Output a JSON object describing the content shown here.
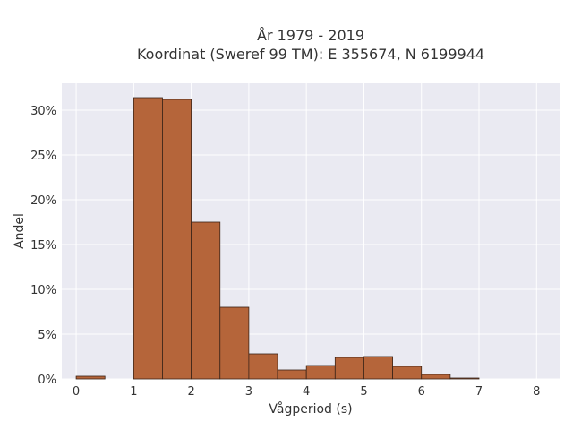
{
  "chart_data": {
    "type": "bar",
    "title_line1": "År 1979 - 2019",
    "title_line2": "Koordinat (Sweref 99 TM): E 355674, N 6199944",
    "xlabel": "Vågperiod (s)",
    "ylabel": "Andel",
    "xlim": [
      -0.25,
      8.4
    ],
    "ylim": [
      0,
      0.33
    ],
    "bin_width": 0.5,
    "bins": [
      {
        "x0": 0.0,
        "x1": 0.5,
        "value": 0.003
      },
      {
        "x0": 0.5,
        "x1": 1.0,
        "value": 0.0
      },
      {
        "x0": 1.0,
        "x1": 1.5,
        "value": 0.314
      },
      {
        "x0": 1.5,
        "x1": 2.0,
        "value": 0.312
      },
      {
        "x0": 2.0,
        "x1": 2.5,
        "value": 0.175
      },
      {
        "x0": 2.5,
        "x1": 3.0,
        "value": 0.08
      },
      {
        "x0": 3.0,
        "x1": 3.5,
        "value": 0.028
      },
      {
        "x0": 3.5,
        "x1": 4.0,
        "value": 0.01
      },
      {
        "x0": 4.0,
        "x1": 4.5,
        "value": 0.015
      },
      {
        "x0": 4.5,
        "x1": 5.0,
        "value": 0.024
      },
      {
        "x0": 5.0,
        "x1": 5.5,
        "value": 0.025
      },
      {
        "x0": 5.5,
        "x1": 6.0,
        "value": 0.014
      },
      {
        "x0": 6.0,
        "x1": 6.5,
        "value": 0.005
      },
      {
        "x0": 6.5,
        "x1": 7.0,
        "value": 0.001
      }
    ],
    "x_ticks": [
      "0",
      "1",
      "2",
      "3",
      "4",
      "5",
      "6",
      "7",
      "8"
    ],
    "y_ticks": [
      "0%",
      "5%",
      "10%",
      "15%",
      "20%",
      "25%",
      "30%"
    ],
    "grid": true,
    "colors": {
      "bar_fill": "#b5653a",
      "bar_stroke": "#3a2418",
      "plot_bg": "#eaeaf2",
      "grid": "#ffffff"
    }
  }
}
